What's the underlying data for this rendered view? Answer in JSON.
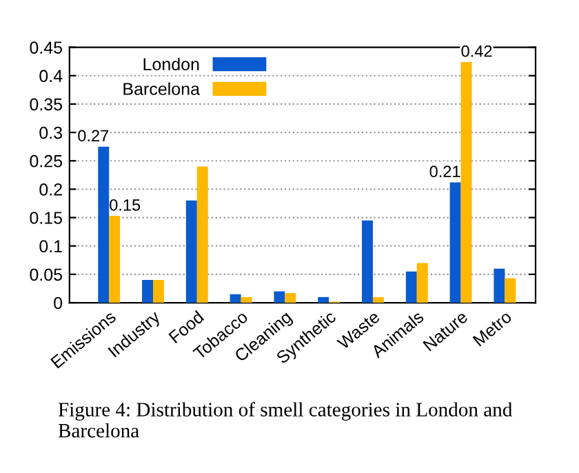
{
  "chart_data": {
    "type": "bar",
    "categories": [
      "Emissions",
      "Industry",
      "Food",
      "Tobacco",
      "Cleaning",
      "Synthetic",
      "Waste",
      "Animals",
      "Nature",
      "Metro"
    ],
    "series": [
      {
        "name": "London",
        "color": "#0a5bcf",
        "values": [
          0.275,
          0.04,
          0.18,
          0.015,
          0.02,
          0.01,
          0.145,
          0.055,
          0.212,
          0.06
        ],
        "value_labels": [
          "0.27",
          null,
          null,
          null,
          null,
          null,
          null,
          null,
          "0.21",
          null
        ]
      },
      {
        "name": "Barcelona",
        "color": "#ffb800",
        "values": [
          0.153,
          0.04,
          0.24,
          0.01,
          0.017,
          0.002,
          0.01,
          0.07,
          0.424,
          0.043
        ],
        "value_labels": [
          "0.15",
          null,
          null,
          null,
          null,
          null,
          null,
          null,
          "0.42",
          null
        ]
      }
    ],
    "ylim": [
      0,
      0.45
    ],
    "yticks": [
      0,
      0.05,
      0.1,
      0.15,
      0.2,
      0.25,
      0.3,
      0.35,
      0.4,
      0.45
    ],
    "grid": "y",
    "legend": "top left",
    "annotations": [
      "Figure 4: Distribution of smell categories in London and Barcelona"
    ]
  }
}
